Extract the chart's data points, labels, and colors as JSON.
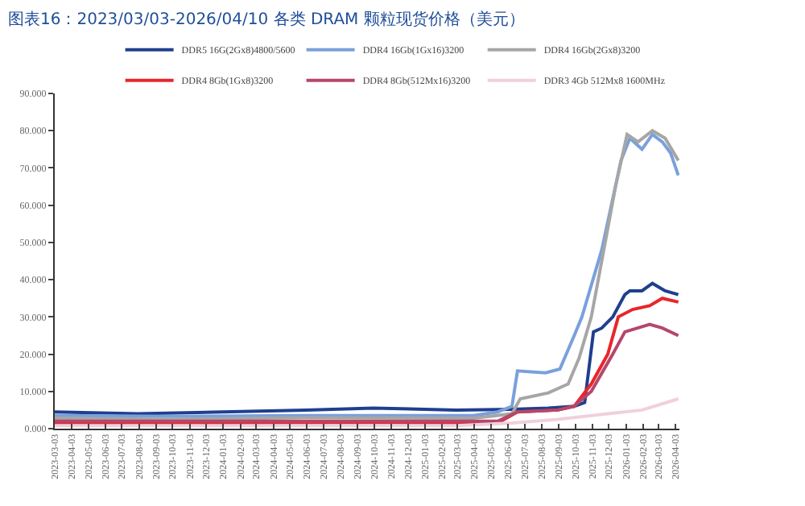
{
  "chart_data": {
    "type": "line",
    "title": "图表16：2023/03/03-2026/04/10 各类 DRAM 颗粒现货价格（美元）",
    "legend": "top",
    "marker": "none",
    "line_style": "solid",
    "xlim": [
      "2023-03-03",
      "2026-04-10"
    ],
    "xticks": [
      "2023-03-03",
      "2023-04-03",
      "2023-05-03",
      "2023-06-03",
      "2023-07-03",
      "2023-08-03",
      "2023-09-03",
      "2023-10-03",
      "2023-11-03",
      "2023-12-03",
      "2024-01-03",
      "2024-02-03",
      "2024-03-03",
      "2024-04-03",
      "2024-05-03",
      "2024-06-03",
      "2024-07-03",
      "2024-08-03",
      "2024-09-03",
      "2024-10-03",
      "2024-11-03",
      "2024-12-03",
      "2025-01-03",
      "2025-02-03",
      "2025-03-03",
      "2025-04-03",
      "2025-05-03",
      "2025-06-03",
      "2025-07-03",
      "2025-08-03",
      "2025-09-03",
      "2025-10-03",
      "2025-11-03",
      "2025-12-03",
      "2026-01-03",
      "2026-02-03",
      "2026-03-03",
      "2026-04-03"
    ],
    "ylim": [
      0,
      90
    ],
    "yticks": [
      {
        "value": 0,
        "label": "0.000"
      },
      {
        "value": 10,
        "label": "10.000"
      },
      {
        "value": 20,
        "label": "20.000"
      },
      {
        "value": 30,
        "label": "30.000"
      },
      {
        "value": 40,
        "label": "40.000"
      },
      {
        "value": 50,
        "label": "50.000"
      },
      {
        "value": 60,
        "label": "60.000"
      },
      {
        "value": 70,
        "label": "70.000"
      },
      {
        "value": 80,
        "label": "80.000"
      },
      {
        "value": 90,
        "label": "90.000"
      }
    ],
    "series": [
      {
        "name": "DDR5 16G(2Gx8)4800/5600",
        "color": "#1f3f8f",
        "x": [
          "2023-03-03",
          "2023-08-01",
          "2024-01-01",
          "2024-06-01",
          "2024-10-01",
          "2025-03-01",
          "2025-06-10",
          "2025-08-15",
          "2025-10-01",
          "2025-10-20",
          "2025-11-05",
          "2025-11-20",
          "2025-12-10",
          "2026-01-01",
          "2026-01-10",
          "2026-02-01",
          "2026-02-20",
          "2026-03-15",
          "2026-04-08"
        ],
        "values": [
          4.5,
          4.0,
          4.5,
          5.0,
          5.5,
          5.0,
          5.2,
          5.5,
          6.0,
          7.0,
          26,
          27,
          30,
          36,
          37,
          37,
          39,
          37,
          36
        ]
      },
      {
        "name": "DDR4 16Gb(1Gx16)3200",
        "color": "#7aa0dc",
        "x": [
          "2023-03-03",
          "2023-10-01",
          "2024-06-01",
          "2025-04-01",
          "2025-05-15",
          "2025-06-10",
          "2025-06-20",
          "2025-08-10",
          "2025-09-05",
          "2025-10-01",
          "2025-10-15",
          "2025-11-20",
          "2025-12-25",
          "2026-01-10",
          "2026-02-01",
          "2026-02-20",
          "2026-03-10",
          "2026-03-25",
          "2026-04-08"
        ],
        "values": [
          3.5,
          3.3,
          3.5,
          3.5,
          4.5,
          6,
          15.5,
          15,
          16,
          25,
          30,
          48,
          72,
          78,
          75,
          79,
          77,
          74,
          68
        ]
      },
      {
        "name": "DDR4 16Gb(2Gx8)3200",
        "color": "#a6a6a6",
        "x": [
          "2023-03-03",
          "2023-10-01",
          "2024-06-01",
          "2025-04-01",
          "2025-06-10",
          "2025-06-25",
          "2025-08-15",
          "2025-09-20",
          "2025-10-10",
          "2025-11-01",
          "2025-11-20",
          "2025-12-15",
          "2026-01-05",
          "2026-01-25",
          "2026-02-20",
          "2026-03-15",
          "2026-04-08"
        ],
        "values": [
          2.8,
          2.5,
          3.0,
          2.8,
          4,
          8,
          9.6,
          12,
          19,
          30,
          45,
          65,
          79,
          77,
          80,
          78,
          72
        ]
      },
      {
        "name": "DDR4 8Gb(1Gx8)3200",
        "color": "#e8262a",
        "x": [
          "2023-03-03",
          "2024-01-01",
          "2024-10-01",
          "2025-05-15",
          "2025-06-20",
          "2025-09-01",
          "2025-10-01",
          "2025-11-01",
          "2025-12-01",
          "2025-12-20",
          "2026-01-15",
          "2026-02-15",
          "2026-03-10",
          "2026-04-08"
        ],
        "values": [
          1.5,
          1.5,
          1.6,
          1.5,
          4.5,
          5,
          6,
          12,
          20,
          30,
          32,
          33,
          35,
          34
        ]
      },
      {
        "name": "DDR4 8Gb(512Mx16)3200",
        "color": "#b5476b",
        "x": [
          "2023-03-03",
          "2024-01-01",
          "2024-10-01",
          "2025-05-15",
          "2025-06-20",
          "2025-09-01",
          "2025-10-01",
          "2025-11-01",
          "2025-12-10",
          "2026-01-01",
          "2026-02-15",
          "2026-03-10",
          "2026-04-08"
        ],
        "values": [
          2.0,
          2.0,
          2.0,
          2.0,
          4.5,
          5,
          6,
          10,
          20,
          26,
          28,
          27,
          25
        ]
      },
      {
        "name": "DDR3 4Gb 512Mx8 1600MHz",
        "color": "#f0d0dc",
        "x": [
          "2023-03-03",
          "2024-06-01",
          "2025-03-01",
          "2025-06-10",
          "2025-09-01",
          "2025-12-01",
          "2026-02-01",
          "2026-04-08"
        ],
        "values": [
          0.8,
          0.8,
          0.8,
          1.5,
          2.5,
          4,
          5,
          8
        ]
      }
    ]
  }
}
